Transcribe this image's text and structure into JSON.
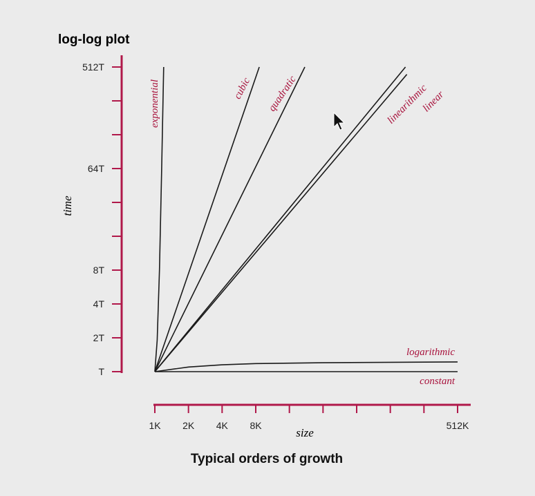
{
  "chart_data": {
    "type": "line",
    "title": "log-log plot",
    "subtitle": "",
    "xlabel": "size",
    "ylabel": "time",
    "caption": "Typical orders of growth",
    "x_scale": "log2",
    "y_scale": "log2",
    "x_ticks": [
      "1K",
      "2K",
      "4K",
      "8K",
      "512K"
    ],
    "y_ticks": [
      "T",
      "2T",
      "4T",
      "8T",
      "64T",
      "512T"
    ],
    "grid": false,
    "series": [
      {
        "name": "exponential",
        "x": [
          1,
          1.05,
          1.1,
          1.15,
          1.2
        ],
        "y": [
          1,
          1.9,
          8,
          60,
          512
        ]
      },
      {
        "name": "cubic",
        "x": [
          1,
          8.6
        ],
        "y": [
          1,
          512
        ]
      },
      {
        "name": "quadratic",
        "x": [
          1,
          22
        ],
        "y": [
          1,
          512
        ]
      },
      {
        "name": "linearithmic",
        "x": [
          1,
          175
        ],
        "y": [
          1,
          512
        ]
      },
      {
        "name": "linear",
        "x": [
          1,
          180
        ],
        "y": [
          1,
          440
        ]
      },
      {
        "name": "logarithmic",
        "x": [
          1,
          2,
          4,
          8,
          32,
          512
        ],
        "y": [
          1,
          1.1,
          1.15,
          1.18,
          1.2,
          1.22
        ]
      },
      {
        "name": "constant",
        "x": [
          1,
          512
        ],
        "y": [
          1,
          1
        ]
      }
    ],
    "colors": {
      "axis": "#b0184a",
      "label": "#a8123c",
      "line": "#1a1a1a",
      "tick_text": "#222222"
    }
  }
}
